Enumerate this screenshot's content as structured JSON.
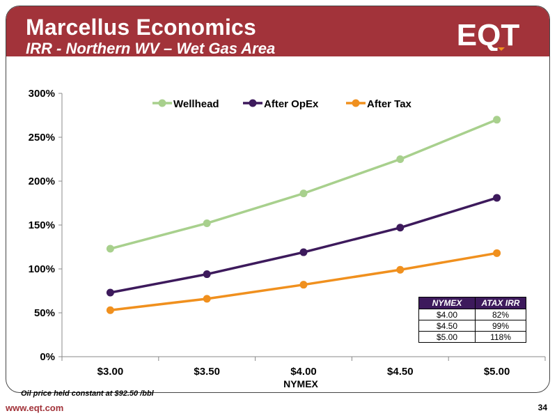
{
  "slide": {
    "title": "Marcellus Economics",
    "subtitle": "IRR - Northern WV – Wet Gas Area",
    "logo_text": "EQT",
    "footnote": "Oil price held constant at $92.50 /bbl",
    "website": "www.eqt.com",
    "page_number": "34",
    "brand_color": "#a2333a"
  },
  "table": {
    "headers": [
      "NYMEX",
      "ATAX IRR"
    ],
    "rows": [
      [
        "$4.00",
        "82%"
      ],
      [
        "$4.50",
        "99%"
      ],
      [
        "$5.00",
        "118%"
      ]
    ],
    "header_color": "#3d1a5c"
  },
  "chart_data": {
    "type": "line",
    "title": "",
    "xlabel": "NYMEX",
    "ylabel": "",
    "categories": [
      "$3.00",
      "$3.50",
      "$4.00",
      "$4.50",
      "$5.00"
    ],
    "ylim": [
      0,
      300
    ],
    "yticks": [
      0,
      50,
      100,
      150,
      200,
      250,
      300
    ],
    "ytick_labels": [
      "0%",
      "50%",
      "100%",
      "150%",
      "200%",
      "250%",
      "300%"
    ],
    "grid": false,
    "legend_position": "top",
    "series": [
      {
        "name": "Wellhead",
        "values": [
          123,
          152,
          186,
          225,
          270
        ],
        "color": "#a8d08d"
      },
      {
        "name": "After OpEx",
        "values": [
          73,
          94,
          119,
          147,
          181
        ],
        "color": "#3d1a5c"
      },
      {
        "name": "After Tax",
        "values": [
          53,
          66,
          82,
          99,
          118
        ],
        "color": "#f0901e"
      }
    ]
  }
}
